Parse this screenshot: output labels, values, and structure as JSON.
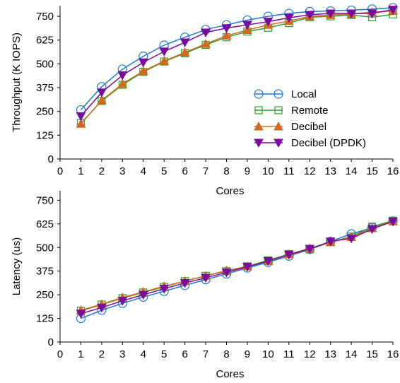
{
  "chart_data": [
    {
      "type": "line",
      "title": "",
      "xlabel": "Cores",
      "ylabel": "Throughput (K IOPS)",
      "xlim": [
        0,
        16
      ],
      "ylim": [
        0,
        800
      ],
      "xticks": [
        "0",
        "1",
        "2",
        "3",
        "4",
        "5",
        "6",
        "7",
        "8",
        "9",
        "10",
        "11",
        "12",
        "13",
        "14",
        "15",
        "16"
      ],
      "yticks": [
        "0",
        "125",
        "250",
        "375",
        "500",
        "625",
        "750"
      ],
      "grid": false,
      "legend": "right",
      "x": [
        1,
        2,
        3,
        4,
        5,
        6,
        7,
        8,
        9,
        10,
        11,
        12,
        13,
        14,
        15,
        16
      ],
      "series": [
        {
          "name": "Local",
          "color": "#1f77d4",
          "marker": "circle",
          "values": [
            258,
            380,
            472,
            540,
            598,
            640,
            680,
            705,
            730,
            750,
            765,
            775,
            778,
            782,
            788,
            795
          ]
        },
        {
          "name": "Remote",
          "color": "#2ca02c",
          "marker": "square",
          "values": [
            188,
            305,
            390,
            458,
            512,
            556,
            600,
            640,
            670,
            690,
            715,
            745,
            750,
            757,
            745,
            760
          ]
        },
        {
          "name": "Decibel",
          "color": "#d2691e",
          "marker": "triangle-up",
          "values": [
            185,
            308,
            395,
            462,
            515,
            560,
            605,
            648,
            678,
            705,
            725,
            750,
            757,
            762,
            772,
            778
          ]
        },
        {
          "name": "Decibel (DPDK)",
          "color": "#7b0aa0",
          "marker": "triangle-down",
          "values": [
            225,
            350,
            440,
            508,
            565,
            613,
            665,
            688,
            705,
            722,
            742,
            758,
            765,
            765,
            765,
            785
          ]
        }
      ]
    },
    {
      "type": "line",
      "title": "",
      "xlabel": "Cores",
      "ylabel": "Latency (us)",
      "xlim": [
        0,
        16
      ],
      "ylim": [
        0,
        800
      ],
      "xticks": [
        "0",
        "1",
        "2",
        "3",
        "4",
        "5",
        "6",
        "7",
        "8",
        "9",
        "10",
        "11",
        "12",
        "13",
        "14",
        "15",
        "16"
      ],
      "yticks": [
        "0",
        "125",
        "250",
        "375",
        "500",
        "625",
        "750"
      ],
      "grid": false,
      "x": [
        1,
        2,
        3,
        4,
        5,
        6,
        7,
        8,
        9,
        10,
        11,
        12,
        13,
        14,
        15,
        16
      ],
      "series": [
        {
          "name": "Local",
          "color": "#1f77d4",
          "marker": "circle",
          "values": [
            125,
            168,
            205,
            238,
            268,
            300,
            330,
            360,
            392,
            422,
            455,
            490,
            532,
            572,
            605,
            640
          ]
        },
        {
          "name": "Remote",
          "color": "#2ca02c",
          "marker": "square",
          "values": [
            165,
            198,
            232,
            262,
            292,
            322,
            350,
            375,
            400,
            432,
            465,
            490,
            528,
            558,
            610,
            642
          ]
        },
        {
          "name": "Decibel",
          "color": "#d2691e",
          "marker": "triangle-up",
          "values": [
            168,
            200,
            235,
            265,
            295,
            322,
            350,
            378,
            400,
            428,
            465,
            495,
            528,
            555,
            602,
            638
          ]
        },
        {
          "name": "Decibel (DPDK)",
          "color": "#7b0aa0",
          "marker": "triangle-down",
          "values": [
            150,
            182,
            218,
            250,
            282,
            312,
            340,
            368,
            398,
            428,
            462,
            493,
            532,
            548,
            598,
            638
          ]
        }
      ]
    }
  ]
}
